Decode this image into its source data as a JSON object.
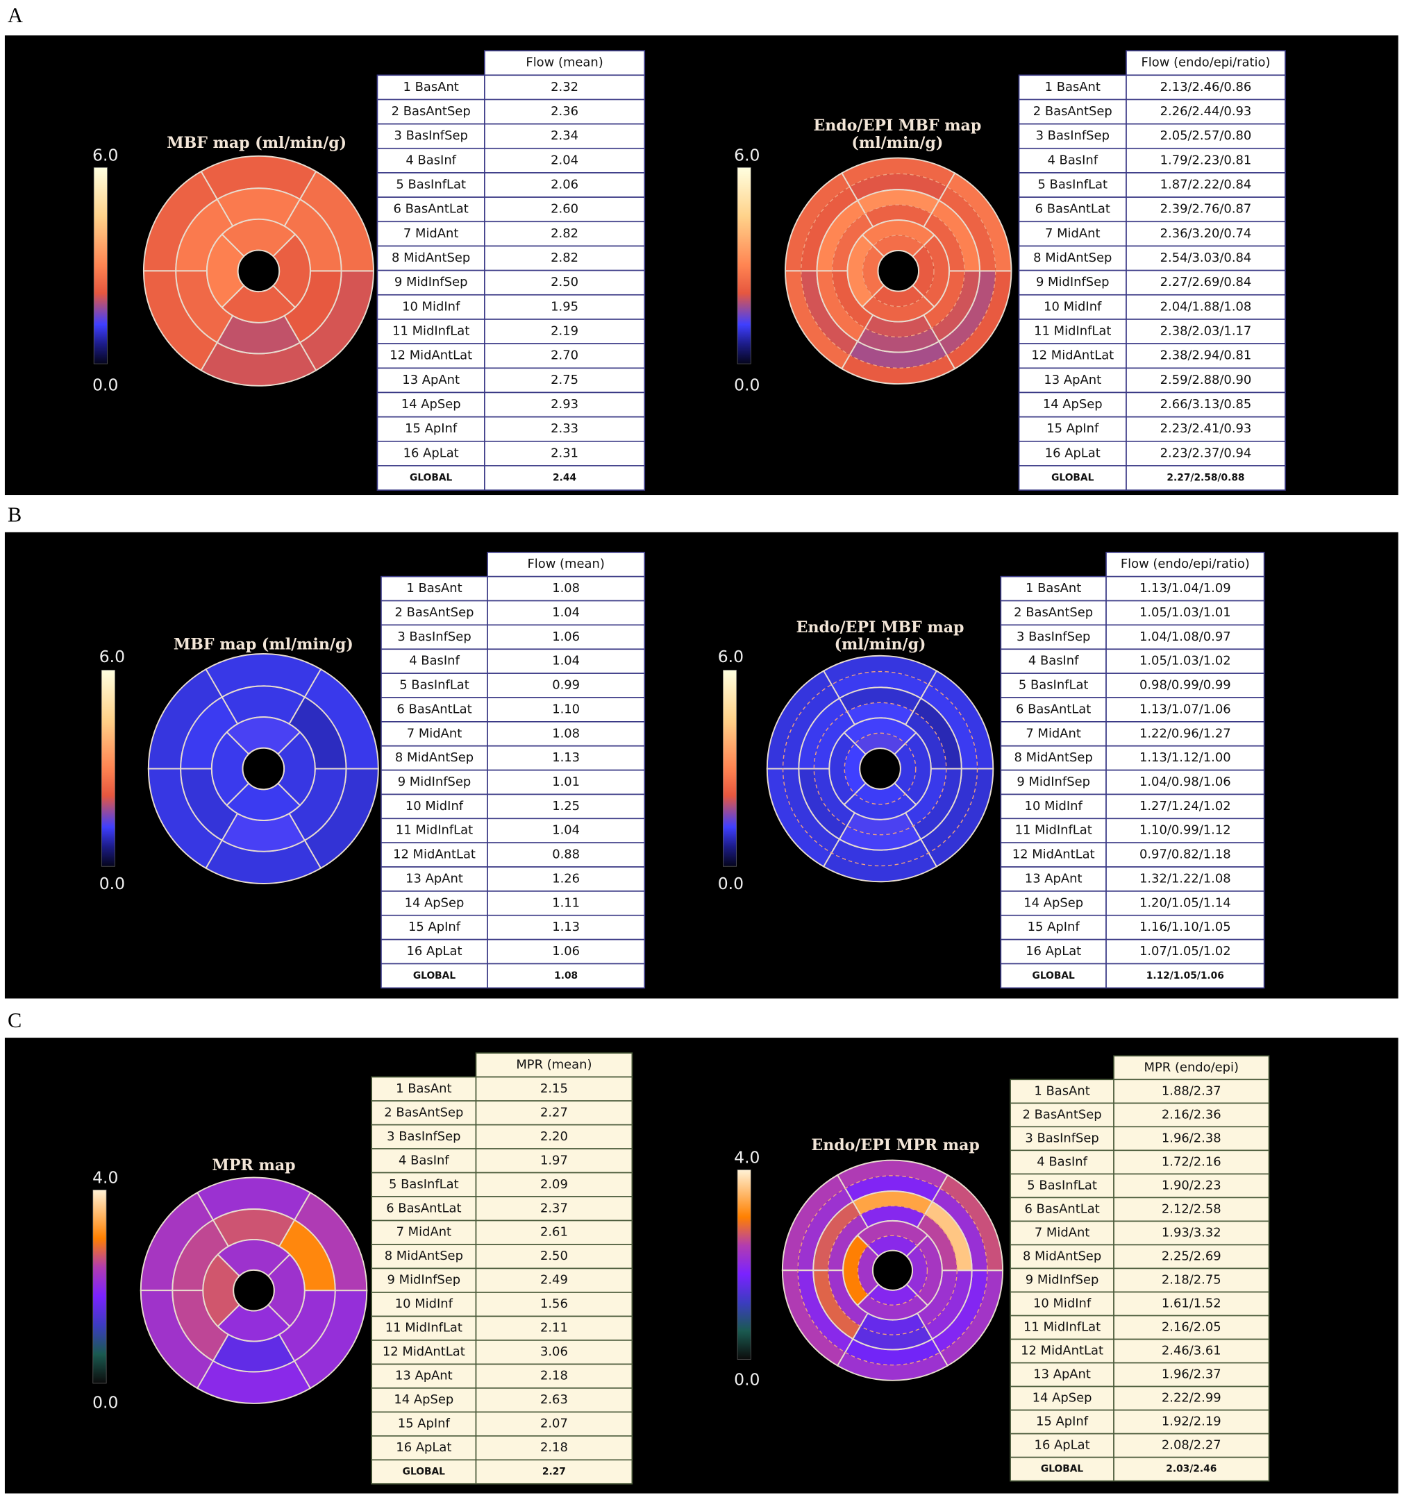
{
  "panels": [
    {
      "label": "A",
      "left": {
        "title": [
          "MBF map (ml/min/g)"
        ],
        "colorbar": {
          "max": "6.0",
          "min": "0.0"
        },
        "header": "Flow (mean)",
        "rows": [
          [
            "1 BasAnt",
            "2.32"
          ],
          [
            "2 BasAntSep",
            "2.36"
          ],
          [
            "3 BasInfSep",
            "2.34"
          ],
          [
            "4 BasInf",
            "2.04"
          ],
          [
            "5 BasInfLat",
            "2.06"
          ],
          [
            "6 BasAntLat",
            "2.60"
          ],
          [
            "7 MidAnt",
            "2.82"
          ],
          [
            "8 MidAntSep",
            "2.82"
          ],
          [
            "9 MidInfSep",
            "2.50"
          ],
          [
            "10 MidInf",
            "1.95"
          ],
          [
            "11 MidInfLat",
            "2.19"
          ],
          [
            "12 MidAntLat",
            "2.70"
          ],
          [
            "13 ApAnt",
            "2.75"
          ],
          [
            "14 ApSep",
            "2.93"
          ],
          [
            "15 ApInf",
            "2.33"
          ],
          [
            "16 ApLat",
            "2.31"
          ]
        ],
        "global": [
          "GLOBAL",
          "2.44"
        ]
      },
      "right": {
        "title": [
          "Endo/EPI MBF map",
          "(ml/min/g)"
        ],
        "colorbar": {
          "max": "6.0",
          "min": "0.0"
        },
        "header": "Flow (endo/epi/ratio)",
        "rows": [
          [
            "1 BasAnt",
            "2.13/2.46/0.86"
          ],
          [
            "2 BasAntSep",
            "2.26/2.44/0.93"
          ],
          [
            "3 BasInfSep",
            "2.05/2.57/0.80"
          ],
          [
            "4 BasInf",
            "1.79/2.23/0.81"
          ],
          [
            "5 BasInfLat",
            "1.87/2.22/0.84"
          ],
          [
            "6 BasAntLat",
            "2.39/2.76/0.87"
          ],
          [
            "7 MidAnt",
            "2.36/3.20/0.74"
          ],
          [
            "8 MidAntSep",
            "2.54/3.03/0.84"
          ],
          [
            "9 MidInfSep",
            "2.27/2.69/0.84"
          ],
          [
            "10 MidInf",
            "2.04/1.88/1.08"
          ],
          [
            "11 MidInfLat",
            "2.38/2.03/1.17"
          ],
          [
            "12 MidAntLat",
            "2.38/2.94/0.81"
          ],
          [
            "13 ApAnt",
            "2.59/2.88/0.90"
          ],
          [
            "14 ApSep",
            "2.66/3.13/0.85"
          ],
          [
            "15 ApInf",
            "2.23/2.41/0.93"
          ],
          [
            "16 ApLat",
            "2.23/2.37/0.94"
          ]
        ],
        "global": [
          "GLOBAL",
          "2.27/2.58/0.88"
        ]
      }
    },
    {
      "label": "B",
      "left": {
        "title": [
          "MBF map (ml/min/g)"
        ],
        "colorbar": {
          "max": "6.0",
          "min": "0.0"
        },
        "header": "Flow (mean)",
        "rows": [
          [
            "1 BasAnt",
            "1.08"
          ],
          [
            "2 BasAntSep",
            "1.04"
          ],
          [
            "3 BasInfSep",
            "1.06"
          ],
          [
            "4 BasInf",
            "1.04"
          ],
          [
            "5 BasInfLat",
            "0.99"
          ],
          [
            "6 BasAntLat",
            "1.10"
          ],
          [
            "7 MidAnt",
            "1.08"
          ],
          [
            "8 MidAntSep",
            "1.13"
          ],
          [
            "9 MidInfSep",
            "1.01"
          ],
          [
            "10 MidInf",
            "1.25"
          ],
          [
            "11 MidInfLat",
            "1.04"
          ],
          [
            "12 MidAntLat",
            "0.88"
          ],
          [
            "13 ApAnt",
            "1.26"
          ],
          [
            "14 ApSep",
            "1.11"
          ],
          [
            "15 ApInf",
            "1.13"
          ],
          [
            "16 ApLat",
            "1.06"
          ]
        ],
        "global": [
          "GLOBAL",
          "1.08"
        ]
      },
      "right": {
        "title": [
          "Endo/EPI MBF map",
          "(ml/min/g)"
        ],
        "colorbar": {
          "max": "6.0",
          "min": "0.0"
        },
        "header": "Flow (endo/epi/ratio)",
        "rows": [
          [
            "1 BasAnt",
            "1.13/1.04/1.09"
          ],
          [
            "2 BasAntSep",
            "1.05/1.03/1.01"
          ],
          [
            "3 BasInfSep",
            "1.04/1.08/0.97"
          ],
          [
            "4 BasInf",
            "1.05/1.03/1.02"
          ],
          [
            "5 BasInfLat",
            "0.98/0.99/0.99"
          ],
          [
            "6 BasAntLat",
            "1.13/1.07/1.06"
          ],
          [
            "7 MidAnt",
            "1.22/0.96/1.27"
          ],
          [
            "8 MidAntSep",
            "1.13/1.12/1.00"
          ],
          [
            "9 MidInfSep",
            "1.04/0.98/1.06"
          ],
          [
            "10 MidInf",
            "1.27/1.24/1.02"
          ],
          [
            "11 MidInfLat",
            "1.10/0.99/1.12"
          ],
          [
            "12 MidAntLat",
            "0.97/0.82/1.18"
          ],
          [
            "13 ApAnt",
            "1.32/1.22/1.08"
          ],
          [
            "14 ApSep",
            "1.20/1.05/1.14"
          ],
          [
            "15 ApInf",
            "1.16/1.10/1.05"
          ],
          [
            "16 ApLat",
            "1.07/1.05/1.02"
          ]
        ],
        "global": [
          "GLOBAL",
          "1.12/1.05/1.06"
        ]
      }
    },
    {
      "label": "C",
      "left": {
        "title": [
          "MPR map"
        ],
        "colorbar": {
          "max": "4.0",
          "min": "0.0"
        },
        "header": "MPR (mean)",
        "rows": [
          [
            "1 BasAnt",
            "2.15"
          ],
          [
            "2 BasAntSep",
            "2.27"
          ],
          [
            "3 BasInfSep",
            "2.20"
          ],
          [
            "4 BasInf",
            "1.97"
          ],
          [
            "5 BasInfLat",
            "2.09"
          ],
          [
            "6 BasAntLat",
            "2.37"
          ],
          [
            "7 MidAnt",
            "2.61"
          ],
          [
            "8 MidAntSep",
            "2.50"
          ],
          [
            "9 MidInfSep",
            "2.49"
          ],
          [
            "10 MidInf",
            "1.56"
          ],
          [
            "11 MidInfLat",
            "2.11"
          ],
          [
            "12 MidAntLat",
            "3.06"
          ],
          [
            "13 ApAnt",
            "2.18"
          ],
          [
            "14 ApSep",
            "2.63"
          ],
          [
            "15 ApInf",
            "2.07"
          ],
          [
            "16 ApLat",
            "2.18"
          ]
        ],
        "global": [
          "GLOBAL",
          "2.27"
        ]
      },
      "right": {
        "title": [
          "Endo/EPI MPR map"
        ],
        "colorbar": {
          "max": "4.0",
          "min": "0.0"
        },
        "header": "MPR (endo/epi)",
        "rows": [
          [
            "1 BasAnt",
            "1.88/2.37"
          ],
          [
            "2 BasAntSep",
            "2.16/2.36"
          ],
          [
            "3 BasInfSep",
            "1.96/2.38"
          ],
          [
            "4 BasInf",
            "1.72/2.16"
          ],
          [
            "5 BasInfLat",
            "1.90/2.23"
          ],
          [
            "6 BasAntLat",
            "2.12/2.58"
          ],
          [
            "7 MidAnt",
            "1.93/3.32"
          ],
          [
            "8 MidAntSep",
            "2.25/2.69"
          ],
          [
            "9 MidInfSep",
            "2.18/2.75"
          ],
          [
            "10 MidInf",
            "1.61/1.52"
          ],
          [
            "11 MidInfLat",
            "2.16/2.05"
          ],
          [
            "12 MidAntLat",
            "2.46/3.61"
          ],
          [
            "13 ApAnt",
            "1.96/2.37"
          ],
          [
            "14 ApSep",
            "2.22/2.99"
          ],
          [
            "15 ApInf",
            "1.92/2.19"
          ],
          [
            "16 ApLat",
            "2.08/2.27"
          ]
        ],
        "global": [
          "GLOBAL",
          "2.03/2.46"
        ]
      }
    }
  ]
}
